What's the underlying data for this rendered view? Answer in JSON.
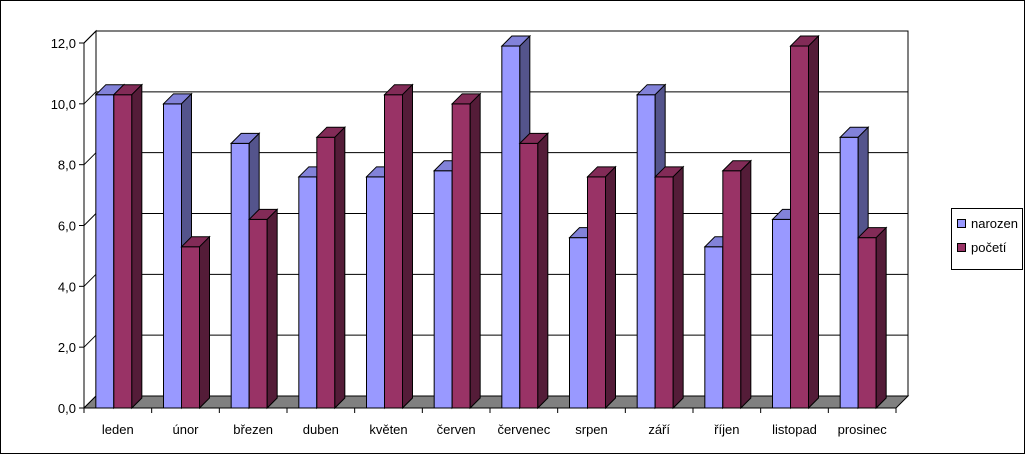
{
  "chart_data": {
    "type": "bar",
    "categories": [
      "leden",
      "únor",
      "březen",
      "duben",
      "květen",
      "červen",
      "červenec",
      "srpen",
      "září",
      "říjen",
      "listopad",
      "prosinec"
    ],
    "series": [
      {
        "name": "narozen",
        "color": "#9999ff",
        "values": [
          10.3,
          10.0,
          8.7,
          7.6,
          7.6,
          7.8,
          11.9,
          5.6,
          10.3,
          5.3,
          6.2,
          8.9
        ]
      },
      {
        "name": "početí",
        "color": "#993366",
        "values": [
          10.3,
          5.3,
          6.2,
          8.9,
          10.3,
          10.0,
          8.7,
          7.6,
          7.6,
          7.8,
          11.9,
          5.6
        ]
      }
    ],
    "yticks": [
      "0,0",
      "2,0",
      "4,0",
      "6,0",
      "8,0",
      "10,0",
      "12,0"
    ],
    "ylim": [
      0,
      12
    ],
    "grid": true,
    "legend_position": "right",
    "floor_color": "#808080"
  }
}
